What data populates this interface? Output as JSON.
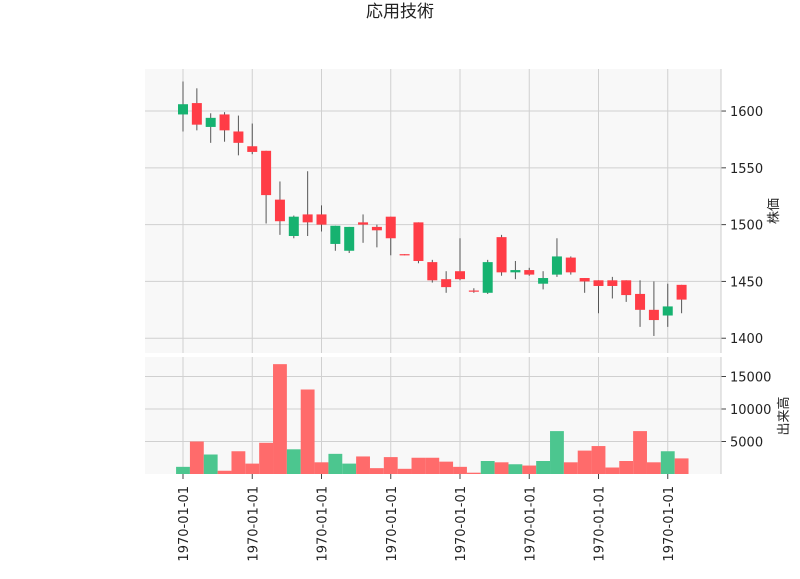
{
  "chart_data": {
    "type": "candlestick",
    "title": "応用技術",
    "price_ylabel": "株価",
    "volume_ylabel": "出来高",
    "price_yticks": [
      1400,
      1450,
      1500,
      1550,
      1600
    ],
    "price_ylim": [
      1387,
      1637
    ],
    "volume_yticks": [
      5000,
      10000,
      15000
    ],
    "volume_ylim": [
      0,
      18000
    ],
    "x_tick_label": "1970-01-01",
    "x_tick_positions": [
      1,
      6,
      11,
      16,
      21,
      26,
      31,
      36
    ],
    "up_color": "#16b270",
    "down_color": "#ff3c46",
    "up_volume_color": "#4cc68f",
    "down_volume_color": "#ff6b6b",
    "grid": true,
    "candles": [
      {
        "o": 1597,
        "h": 1626,
        "l": 1582,
        "c": 1606,
        "v": 1100
      },
      {
        "o": 1607,
        "h": 1620,
        "l": 1583,
        "c": 1588,
        "v": 5000
      },
      {
        "o": 1586,
        "h": 1598,
        "l": 1572,
        "c": 1594,
        "v": 3000
      },
      {
        "o": 1597,
        "h": 1599,
        "l": 1573,
        "c": 1583,
        "v": 500
      },
      {
        "o": 1582,
        "h": 1596,
        "l": 1561,
        "c": 1572,
        "v": 3500
      },
      {
        "o": 1569,
        "h": 1589,
        "l": 1562,
        "c": 1564,
        "v": 1600
      },
      {
        "o": 1565,
        "h": 1565,
        "l": 1501,
        "c": 1526,
        "v": 4800
      },
      {
        "o": 1522,
        "h": 1538,
        "l": 1491,
        "c": 1503,
        "v": 16900
      },
      {
        "o": 1490,
        "h": 1508,
        "l": 1488,
        "c": 1507,
        "v": 3800
      },
      {
        "o": 1509,
        "h": 1547,
        "l": 1490,
        "c": 1502,
        "v": 13000
      },
      {
        "o": 1509,
        "h": 1517,
        "l": 1494,
        "c": 1500,
        "v": 1800
      },
      {
        "o": 1483,
        "h": 1499,
        "l": 1477,
        "c": 1499,
        "v": 3100
      },
      {
        "o": 1477,
        "h": 1498,
        "l": 1475,
        "c": 1498,
        "v": 1600
      },
      {
        "o": 1502,
        "h": 1509,
        "l": 1484,
        "c": 1500,
        "v": 2700
      },
      {
        "o": 1498,
        "h": 1500,
        "l": 1480,
        "c": 1495,
        "v": 900
      },
      {
        "o": 1507,
        "h": 1507,
        "l": 1473,
        "c": 1488,
        "v": 2600
      },
      {
        "o": 1474,
        "h": 1474,
        "l": 1473,
        "c": 1473,
        "v": 800
      },
      {
        "o": 1502,
        "h": 1502,
        "l": 1466,
        "c": 1468,
        "v": 2500
      },
      {
        "o": 1467,
        "h": 1469,
        "l": 1449,
        "c": 1451,
        "v": 2500
      },
      {
        "o": 1452,
        "h": 1459,
        "l": 1440,
        "c": 1445,
        "v": 1900
      },
      {
        "o": 1459,
        "h": 1488,
        "l": 1451,
        "c": 1452,
        "v": 1100
      },
      {
        "o": 1442,
        "h": 1444,
        "l": 1440,
        "c": 1441,
        "v": 200
      },
      {
        "o": 1440,
        "h": 1469,
        "l": 1439,
        "c": 1467,
        "v": 2000
      },
      {
        "o": 1489,
        "h": 1491,
        "l": 1455,
        "c": 1458,
        "v": 1800
      },
      {
        "o": 1458,
        "h": 1468,
        "l": 1452,
        "c": 1460,
        "v": 1500
      },
      {
        "o": 1460,
        "h": 1462,
        "l": 1455,
        "c": 1456,
        "v": 1300
      },
      {
        "o": 1448,
        "h": 1459,
        "l": 1443,
        "c": 1453,
        "v": 2000
      },
      {
        "o": 1456,
        "h": 1488,
        "l": 1454,
        "c": 1472,
        "v": 6600
      },
      {
        "o": 1471,
        "h": 1472,
        "l": 1456,
        "c": 1458,
        "v": 1800
      },
      {
        "o": 1453,
        "h": 1453,
        "l": 1440,
        "c": 1450,
        "v": 3600
      },
      {
        "o": 1451,
        "h": 1451,
        "l": 1422,
        "c": 1446,
        "v": 4300
      },
      {
        "o": 1451,
        "h": 1454,
        "l": 1435,
        "c": 1446,
        "v": 1000
      },
      {
        "o": 1451,
        "h": 1451,
        "l": 1432,
        "c": 1438,
        "v": 2000
      },
      {
        "o": 1439,
        "h": 1451,
        "l": 1410,
        "c": 1425,
        "v": 6600
      },
      {
        "o": 1425,
        "h": 1450,
        "l": 1402,
        "c": 1416,
        "v": 1800
      },
      {
        "o": 1420,
        "h": 1448,
        "l": 1410,
        "c": 1428,
        "v": 3500
      },
      {
        "o": 1447,
        "h": 1447,
        "l": 1422,
        "c": 1434,
        "v": 2400
      }
    ]
  }
}
